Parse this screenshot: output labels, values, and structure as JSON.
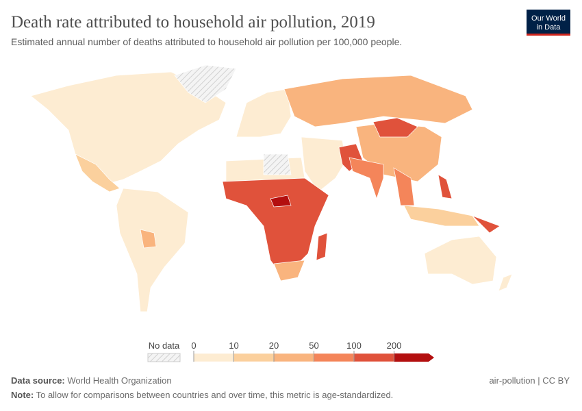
{
  "header": {
    "title": "Death rate attributed to household air pollution, 2019",
    "subtitle": "Estimated annual number of deaths attributed to household air pollution per 100,000 people.",
    "logo": [
      "Our World",
      "in Data"
    ]
  },
  "legend": {
    "no_data_label": "No data",
    "bins": [
      0,
      10,
      20,
      50,
      100,
      200
    ],
    "colors": [
      "#fdecd2",
      "#fbd09d",
      "#f9b47e",
      "#f4855a",
      "#e0523b",
      "#b30f0f"
    ]
  },
  "footer": {
    "source_label": "Data source:",
    "source": "World Health Organization",
    "slug": "air-pollution | CC BY",
    "note_label": "Note:",
    "note": "To allow for comparisons between countries and over time, this metric is age-standardized."
  }
}
